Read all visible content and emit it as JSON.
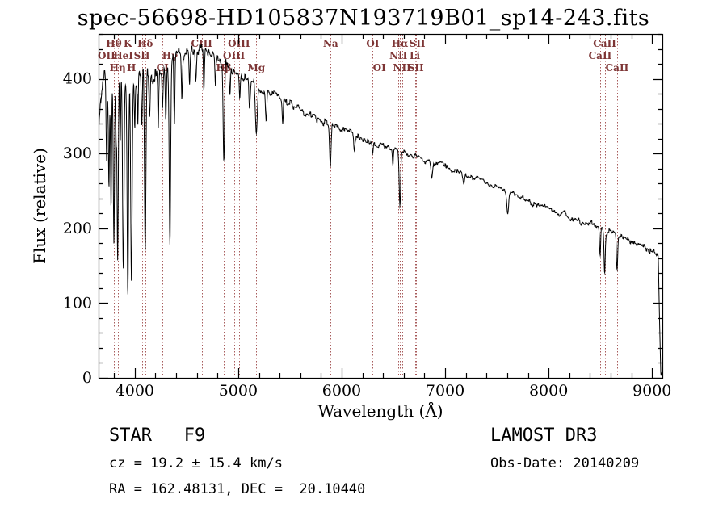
{
  "title": "spec-56698-HD105837N193719B01_sp14-243.fits",
  "footer": {
    "class_type": "STAR   F9",
    "cz": "cz = 19.2 ± 15.4 km/s",
    "radec": "RA = 162.48131, DEC =  20.10440",
    "survey": "LAMOST DR3",
    "obs_date": "Obs-Date: 20140209"
  },
  "chart_data": {
    "type": "line",
    "title": "spec-56698-HD105837N193719B01_sp14-243.fits",
    "xlabel": "Wavelength (Å)",
    "ylabel": "Flux (relative)",
    "xlim": [
      3650,
      9100
    ],
    "ylim": [
      0,
      460
    ],
    "xticks": [
      4000,
      5000,
      6000,
      7000,
      8000,
      9000
    ],
    "yticks": [
      0,
      100,
      200,
      300,
      400
    ],
    "x_minor_step": 200,
    "y_minor_step": 20,
    "grid": false,
    "line_color": "#000000",
    "marker_line_color": "#a85c5c",
    "label_color": "#7d3535",
    "spectral_lines": [
      {
        "name": "Hθ",
        "wavelength": 3798,
        "row": 1
      },
      {
        "name": "K",
        "wavelength": 3933,
        "row": 1
      },
      {
        "name": "Hδ",
        "wavelength": 4101,
        "row": 1
      },
      {
        "name": "CIII",
        "wavelength": 4647,
        "row": 1
      },
      {
        "name": "OIII",
        "wavelength": 5007,
        "row": 1
      },
      {
        "name": "Na",
        "wavelength": 5893,
        "row": 1
      },
      {
        "name": "OI",
        "wavelength": 6300,
        "row": 1
      },
      {
        "name": "Hα",
        "wavelength": 6563,
        "row": 1
      },
      {
        "name": "SII",
        "wavelength": 6731,
        "row": 1
      },
      {
        "name": "CaII",
        "wavelength": 8542,
        "row": 1
      },
      {
        "name": "OII",
        "wavelength": 3727,
        "row": 2
      },
      {
        "name": "HeI",
        "wavelength": 3889,
        "row": 2
      },
      {
        "name": "SII",
        "wavelength": 4068,
        "row": 2
      },
      {
        "name": "Hγ",
        "wavelength": 4340,
        "row": 2
      },
      {
        "name": "OIII",
        "wavelength": 4959,
        "row": 2
      },
      {
        "name": "NII",
        "wavelength": 6548,
        "row": 2
      },
      {
        "name": "Li",
        "wavelength": 6707,
        "row": 2
      },
      {
        "name": "CaII",
        "wavelength": 8498,
        "row": 2
      },
      {
        "name": "Hη",
        "wavelength": 3835,
        "row": 3
      },
      {
        "name": "H",
        "wavelength": 3968,
        "row": 3
      },
      {
        "name": "CI",
        "wavelength": 4268,
        "row": 3
      },
      {
        "name": "Hβ",
        "wavelength": 4861,
        "row": 3
      },
      {
        "name": "Mg",
        "wavelength": 5175,
        "row": 3
      },
      {
        "name": "OI",
        "wavelength": 6365,
        "row": 3
      },
      {
        "name": "NII",
        "wavelength": 6583,
        "row": 3
      },
      {
        "name": "SII",
        "wavelength": 6716,
        "row": 3
      },
      {
        "name": "CaII",
        "wavelength": 8662,
        "row": 3
      }
    ],
    "continuum": [
      [
        3655,
        340
      ],
      [
        3680,
        375
      ],
      [
        3700,
        392
      ],
      [
        3760,
        398
      ],
      [
        3800,
        400
      ],
      [
        3850,
        398
      ],
      [
        3900,
        396
      ],
      [
        3950,
        398
      ],
      [
        4000,
        402
      ],
      [
        4050,
        404
      ],
      [
        4100,
        406
      ],
      [
        4150,
        405
      ],
      [
        4200,
        408
      ],
      [
        4250,
        414
      ],
      [
        4300,
        420
      ],
      [
        4350,
        426
      ],
      [
        4400,
        432
      ],
      [
        4450,
        436
      ],
      [
        4500,
        438
      ],
      [
        4550,
        441
      ],
      [
        4600,
        442
      ],
      [
        4650,
        441
      ],
      [
        4700,
        438
      ],
      [
        4750,
        432
      ],
      [
        4800,
        427
      ],
      [
        4850,
        422
      ],
      [
        4900,
        416
      ],
      [
        4950,
        410
      ],
      [
        5000,
        406
      ],
      [
        5050,
        402
      ],
      [
        5100,
        398
      ],
      [
        5150,
        392
      ],
      [
        5200,
        388
      ],
      [
        5300,
        381
      ],
      [
        5400,
        374
      ],
      [
        5500,
        366
      ],
      [
        5600,
        359
      ],
      [
        5700,
        352
      ],
      [
        5800,
        346
      ],
      [
        5900,
        340
      ],
      [
        6000,
        334
      ],
      [
        6100,
        327
      ],
      [
        6200,
        320
      ],
      [
        6300,
        314
      ],
      [
        6400,
        309
      ],
      [
        6500,
        305
      ],
      [
        6600,
        300
      ],
      [
        6700,
        296
      ],
      [
        6800,
        292
      ],
      [
        6900,
        288
      ],
      [
        7000,
        284
      ],
      [
        7100,
        278
      ],
      [
        7200,
        272
      ],
      [
        7300,
        267
      ],
      [
        7400,
        261
      ],
      [
        7500,
        255
      ],
      [
        7600,
        249
      ],
      [
        7700,
        243
      ],
      [
        7800,
        237
      ],
      [
        7900,
        231
      ],
      [
        8000,
        226
      ],
      [
        8100,
        220
      ],
      [
        8200,
        215
      ],
      [
        8300,
        210
      ],
      [
        8400,
        206
      ],
      [
        8500,
        201
      ],
      [
        8600,
        195
      ],
      [
        8700,
        189
      ],
      [
        8800,
        182
      ],
      [
        8900,
        176
      ],
      [
        9000,
        170
      ],
      [
        9040,
        166
      ],
      [
        9060,
        160
      ],
      [
        9075,
        60
      ],
      [
        9085,
        2
      ]
    ],
    "absorption_features": [
      [
        3727,
        110,
        5
      ],
      [
        3750,
        140,
        5
      ],
      [
        3771,
        170,
        5
      ],
      [
        3798,
        210,
        6
      ],
      [
        3820,
        80,
        4
      ],
      [
        3835,
        240,
        6
      ],
      [
        3860,
        90,
        4
      ],
      [
        3889,
        255,
        7
      ],
      [
        3933,
        290,
        7
      ],
      [
        3968,
        265,
        7
      ],
      [
        4000,
        60,
        4
      ],
      [
        4030,
        70,
        4
      ],
      [
        4068,
        80,
        5
      ],
      [
        4101,
        245,
        7
      ],
      [
        4144,
        60,
        5
      ],
      [
        4227,
        90,
        5
      ],
      [
        4268,
        50,
        5
      ],
      [
        4300,
        70,
        6
      ],
      [
        4340,
        235,
        7
      ],
      [
        4383,
        95,
        5
      ],
      [
        4455,
        55,
        5
      ],
      [
        4530,
        45,
        5
      ],
      [
        4590,
        40,
        5
      ],
      [
        4668,
        55,
        5
      ],
      [
        4780,
        40,
        5
      ],
      [
        4861,
        130,
        7
      ],
      [
        4920,
        40,
        5
      ],
      [
        5015,
        35,
        5
      ],
      [
        5110,
        40,
        6
      ],
      [
        5175,
        60,
        9
      ],
      [
        5270,
        45,
        6
      ],
      [
        5430,
        30,
        5
      ],
      [
        5890,
        55,
        7
      ],
      [
        6122,
        18,
        5
      ],
      [
        6300,
        16,
        5
      ],
      [
        6495,
        20,
        5
      ],
      [
        6563,
        70,
        7
      ],
      [
        6870,
        22,
        9
      ],
      [
        7180,
        14,
        8
      ],
      [
        7605,
        28,
        9
      ],
      [
        8498,
        35,
        5
      ],
      [
        8542,
        55,
        6
      ],
      [
        8662,
        45,
        6
      ]
    ],
    "noise_profile": [
      [
        3650,
        16
      ],
      [
        4000,
        15
      ],
      [
        4300,
        14
      ],
      [
        4700,
        10
      ],
      [
        5200,
        7
      ],
      [
        6000,
        5
      ],
      [
        7000,
        4
      ],
      [
        8000,
        4
      ],
      [
        9000,
        5
      ]
    ],
    "noise_seed": 20140209
  }
}
